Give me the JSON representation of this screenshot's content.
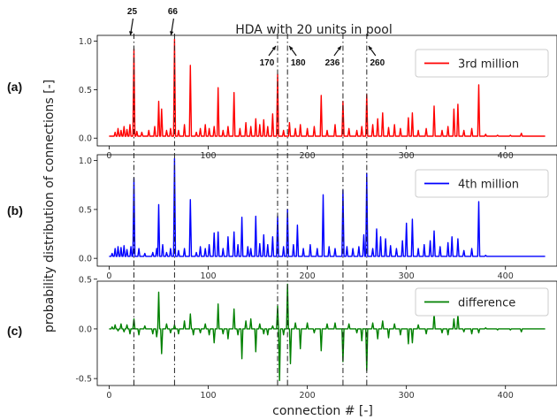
{
  "chart_data": {
    "type": "line",
    "title": "HDA with 20 units in pool",
    "xlabel": "connection # [-]",
    "ylabel": "probability distribution of connections [-]",
    "xlim": [
      -12,
      452
    ],
    "xticks": [
      0,
      100,
      200,
      300,
      400
    ],
    "annotations": [
      {
        "label": "25",
        "x": 25
      },
      {
        "label": "66",
        "x": 66
      },
      {
        "label": "170",
        "x": 170
      },
      {
        "label": "180",
        "x": 180
      },
      {
        "label": "236",
        "x": 236
      },
      {
        "label": "260",
        "x": 260
      }
    ],
    "panels": [
      {
        "tag": "(a)",
        "series_name": "3rd million",
        "color": "#ff0000",
        "ylim": [
          -0.08,
          1.06
        ],
        "yticks": [
          0.0,
          0.5,
          1.0
        ],
        "ytick_labels": [
          "0.0",
          "0.5",
          "1.0"
        ],
        "baseline": 0.02,
        "peaks": [
          [
            6,
            0.06
          ],
          [
            9,
            0.1
          ],
          [
            12,
            0.08
          ],
          [
            15,
            0.12
          ],
          [
            18,
            0.09
          ],
          [
            21,
            0.14
          ],
          [
            25,
            0.92
          ],
          [
            28,
            0.07
          ],
          [
            33,
            0.06
          ],
          [
            40,
            0.08
          ],
          [
            46,
            0.12
          ],
          [
            50,
            0.38
          ],
          [
            53,
            0.3
          ],
          [
            58,
            0.08
          ],
          [
            62,
            0.1
          ],
          [
            66,
            1.02
          ],
          [
            70,
            0.08
          ],
          [
            76,
            0.14
          ],
          [
            82,
            0.75
          ],
          [
            88,
            0.06
          ],
          [
            92,
            0.1
          ],
          [
            97,
            0.14
          ],
          [
            101,
            0.1
          ],
          [
            106,
            0.12
          ],
          [
            110,
            0.52
          ],
          [
            115,
            0.08
          ],
          [
            120,
            0.12
          ],
          [
            126,
            0.47
          ],
          [
            132,
            0.1
          ],
          [
            138,
            0.16
          ],
          [
            143,
            0.12
          ],
          [
            148,
            0.2
          ],
          [
            152,
            0.14
          ],
          [
            156,
            0.19
          ],
          [
            160,
            0.12
          ],
          [
            165,
            0.25
          ],
          [
            170,
            0.66
          ],
          [
            176,
            0.08
          ],
          [
            182,
            0.16
          ],
          [
            188,
            0.1
          ],
          [
            193,
            0.14
          ],
          [
            200,
            0.1
          ],
          [
            207,
            0.12
          ],
          [
            214,
            0.44
          ],
          [
            220,
            0.08
          ],
          [
            228,
            0.14
          ],
          [
            236,
            0.38
          ],
          [
            242,
            0.1
          ],
          [
            250,
            0.08
          ],
          [
            255,
            0.12
          ],
          [
            260,
            0.45
          ],
          [
            266,
            0.14
          ],
          [
            271,
            0.2
          ],
          [
            276,
            0.26
          ],
          [
            282,
            0.11
          ],
          [
            288,
            0.14
          ],
          [
            294,
            0.1
          ],
          [
            302,
            0.21
          ],
          [
            306,
            0.26
          ],
          [
            312,
            0.08
          ],
          [
            320,
            0.1
          ],
          [
            328,
            0.33
          ],
          [
            336,
            0.08
          ],
          [
            342,
            0.12
          ],
          [
            348,
            0.3
          ],
          [
            352,
            0.35
          ],
          [
            358,
            0.08
          ],
          [
            366,
            0.1
          ],
          [
            373,
            0.55
          ],
          [
            380,
            0.04
          ],
          [
            392,
            0.03
          ],
          [
            405,
            0.03
          ],
          [
            416,
            0.05
          ]
        ],
        "end_x": 440
      },
      {
        "tag": "(b)",
        "series_name": "4th million",
        "color": "#0000ff",
        "ylim": [
          -0.08,
          1.06
        ],
        "yticks": [
          0.0,
          0.5,
          1.0
        ],
        "ytick_labels": [
          "0.0",
          "0.5",
          "1.0"
        ],
        "baseline": 0.02,
        "peaks": [
          [
            3,
            0.05
          ],
          [
            6,
            0.1
          ],
          [
            9,
            0.12
          ],
          [
            12,
            0.11
          ],
          [
            15,
            0.13
          ],
          [
            18,
            0.09
          ],
          [
            22,
            0.12
          ],
          [
            25,
            0.82
          ],
          [
            30,
            0.1
          ],
          [
            36,
            0.05
          ],
          [
            44,
            0.06
          ],
          [
            48,
            0.1
          ],
          [
            50,
            0.55
          ],
          [
            54,
            0.14
          ],
          [
            58,
            0.06
          ],
          [
            62,
            0.1
          ],
          [
            66,
            1.02
          ],
          [
            70,
            0.08
          ],
          [
            76,
            0.1
          ],
          [
            82,
            0.6
          ],
          [
            88,
            0.06
          ],
          [
            92,
            0.12
          ],
          [
            97,
            0.1
          ],
          [
            101,
            0.14
          ],
          [
            106,
            0.26
          ],
          [
            110,
            0.27
          ],
          [
            115,
            0.1
          ],
          [
            120,
            0.22
          ],
          [
            126,
            0.27
          ],
          [
            130,
            0.14
          ],
          [
            134,
            0.42
          ],
          [
            140,
            0.12
          ],
          [
            143,
            0.1
          ],
          [
            148,
            0.43
          ],
          [
            152,
            0.15
          ],
          [
            156,
            0.24
          ],
          [
            160,
            0.14
          ],
          [
            165,
            0.22
          ],
          [
            170,
            0.43
          ],
          [
            176,
            0.12
          ],
          [
            180,
            0.5
          ],
          [
            186,
            0.14
          ],
          [
            190,
            0.34
          ],
          [
            196,
            0.1
          ],
          [
            203,
            0.14
          ],
          [
            210,
            0.1
          ],
          [
            216,
            0.65
          ],
          [
            222,
            0.12
          ],
          [
            228,
            0.1
          ],
          [
            236,
            0.7
          ],
          [
            240,
            0.12
          ],
          [
            246,
            0.1
          ],
          [
            252,
            0.12
          ],
          [
            257,
            0.24
          ],
          [
            260,
            0.87
          ],
          [
            266,
            0.1
          ],
          [
            270,
            0.3
          ],
          [
            274,
            0.22
          ],
          [
            279,
            0.2
          ],
          [
            284,
            0.13
          ],
          [
            290,
            0.1
          ],
          [
            296,
            0.18
          ],
          [
            300,
            0.36
          ],
          [
            306,
            0.4
          ],
          [
            312,
            0.1
          ],
          [
            318,
            0.14
          ],
          [
            324,
            0.18
          ],
          [
            328,
            0.28
          ],
          [
            334,
            0.12
          ],
          [
            342,
            0.16
          ],
          [
            346,
            0.22
          ],
          [
            352,
            0.2
          ],
          [
            358,
            0.08
          ],
          [
            366,
            0.1
          ],
          [
            373,
            0.58
          ],
          [
            380,
            0.03
          ],
          [
            395,
            0.02
          ],
          [
            410,
            0.02
          ]
        ],
        "end_x": 440
      },
      {
        "tag": "(c)",
        "series_name": "difference",
        "color": "#008000",
        "ylim": [
          -0.57,
          0.48
        ],
        "yticks": [
          -0.5,
          0.0,
          0.5
        ],
        "ytick_labels": [
          "-0.5",
          "0.0",
          "0.5"
        ],
        "baseline": 0.0,
        "peaks": [
          [
            3,
            0.02
          ],
          [
            6,
            0.04
          ],
          [
            9,
            -0.02
          ],
          [
            12,
            0.05
          ],
          [
            15,
            -0.03
          ],
          [
            18,
            0.04
          ],
          [
            21,
            -0.05
          ],
          [
            25,
            0.1
          ],
          [
            30,
            -0.06
          ],
          [
            36,
            0.03
          ],
          [
            44,
            -0.05
          ],
          [
            48,
            -0.08
          ],
          [
            50,
            0.37
          ],
          [
            53,
            -0.25
          ],
          [
            58,
            0.05
          ],
          [
            62,
            -0.04
          ],
          [
            66,
            0.04
          ],
          [
            70,
            -0.05
          ],
          [
            76,
            0.08
          ],
          [
            82,
            0.15
          ],
          [
            85,
            -0.06
          ],
          [
            92,
            -0.04
          ],
          [
            97,
            0.05
          ],
          [
            101,
            -0.06
          ],
          [
            106,
            -0.14
          ],
          [
            110,
            0.25
          ],
          [
            115,
            -0.05
          ],
          [
            120,
            -0.1
          ],
          [
            126,
            0.2
          ],
          [
            130,
            -0.06
          ],
          [
            134,
            -0.3
          ],
          [
            138,
            0.08
          ],
          [
            143,
            0.1
          ],
          [
            148,
            -0.23
          ],
          [
            152,
            0.05
          ],
          [
            156,
            -0.05
          ],
          [
            160,
            -0.06
          ],
          [
            165,
            0.03
          ],
          [
            170,
            0.23
          ],
          [
            172,
            -0.52
          ],
          [
            176,
            -0.06
          ],
          [
            180,
            0.45
          ],
          [
            183,
            -0.35
          ],
          [
            188,
            0.06
          ],
          [
            193,
            -0.2
          ],
          [
            200,
            0.06
          ],
          [
            207,
            -0.04
          ],
          [
            214,
            -0.22
          ],
          [
            220,
            0.05
          ],
          [
            228,
            0.06
          ],
          [
            236,
            -0.33
          ],
          [
            242,
            0.05
          ],
          [
            250,
            -0.04
          ],
          [
            255,
            -0.12
          ],
          [
            260,
            -0.42
          ],
          [
            266,
            0.06
          ],
          [
            271,
            -0.1
          ],
          [
            276,
            0.08
          ],
          [
            282,
            -0.09
          ],
          [
            288,
            0.05
          ],
          [
            294,
            -0.06
          ],
          [
            302,
            -0.15
          ],
          [
            306,
            -0.14
          ],
          [
            312,
            0.04
          ],
          [
            320,
            -0.05
          ],
          [
            328,
            0.15
          ],
          [
            336,
            -0.04
          ],
          [
            342,
            -0.06
          ],
          [
            348,
            0.1
          ],
          [
            352,
            0.14
          ],
          [
            358,
            -0.03
          ],
          [
            366,
            -0.05
          ],
          [
            373,
            -0.04
          ],
          [
            380,
            0.01
          ],
          [
            392,
            -0.01
          ],
          [
            405,
            -0.01
          ],
          [
            416,
            -0.03
          ]
        ],
        "end_x": 440
      }
    ]
  }
}
